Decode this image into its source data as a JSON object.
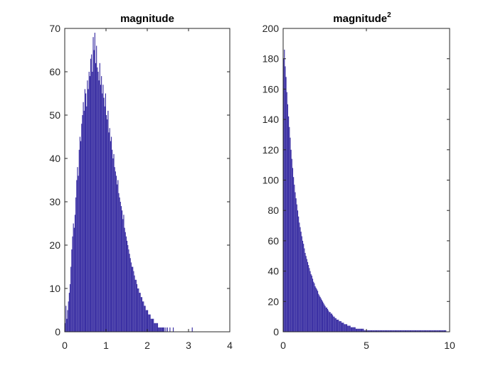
{
  "colors": {
    "bar": "#3a2fa3",
    "axis": "#262626",
    "background": "#ffffff"
  },
  "chart_data": [
    {
      "type": "bar",
      "subtype": "histogram",
      "title": "magnitude",
      "xlabel": "",
      "ylabel": "",
      "xlim": [
        0,
        4
      ],
      "ylim": [
        0,
        70
      ],
      "xticks": [
        "0",
        "1",
        "2",
        "3",
        "4"
      ],
      "yticks": [
        "0",
        "10",
        "20",
        "30",
        "40",
        "50",
        "60",
        "70"
      ],
      "bin_width": 0.02,
      "bin_start": 0,
      "values": [
        2,
        6,
        3,
        5,
        7,
        9,
        11,
        15,
        19,
        22,
        25,
        24,
        27,
        31,
        35,
        38,
        36,
        42,
        45,
        44,
        48,
        50,
        53,
        51,
        56,
        55,
        52,
        58,
        56,
        60,
        59,
        63,
        64,
        60,
        68,
        65,
        69,
        62,
        66,
        61,
        60,
        58,
        62,
        57,
        59,
        55,
        57,
        54,
        52,
        55,
        50,
        49,
        51,
        46,
        47,
        44,
        45,
        42,
        40,
        41,
        38,
        37,
        36,
        34,
        35,
        32,
        31,
        30,
        29,
        28,
        26,
        27,
        24,
        23,
        22,
        21,
        20,
        19,
        18,
        17,
        16,
        15,
        15,
        14,
        13,
        12,
        12,
        11,
        10,
        10,
        9,
        9,
        8,
        8,
        7,
        7,
        6,
        6,
        5,
        5,
        5,
        4,
        4,
        4,
        3,
        3,
        3,
        3,
        2,
        2,
        2,
        2,
        2,
        1,
        1,
        1,
        1,
        1,
        1,
        1,
        1,
        0,
        1,
        0,
        1,
        0,
        0,
        1,
        0,
        0,
        0,
        1,
        0,
        0,
        0,
        0,
        0,
        0,
        0,
        0,
        0,
        0,
        0,
        0,
        0,
        0,
        0,
        0,
        0,
        0,
        0,
        0,
        0,
        0,
        1,
        0,
        0,
        0,
        0,
        0,
        0,
        0,
        0,
        0,
        0,
        0,
        0,
        0,
        0,
        0,
        0,
        0,
        0,
        0,
        0,
        0,
        0,
        0,
        0,
        0,
        0,
        0,
        0,
        0,
        0,
        0,
        0,
        0,
        0,
        0,
        0,
        0,
        0,
        0,
        0,
        0,
        0,
        0,
        0,
        0
      ]
    },
    {
      "type": "bar",
      "subtype": "histogram",
      "title": "magnitude",
      "title_superscript": "2",
      "xlabel": "",
      "ylabel": "",
      "xlim": [
        0,
        10
      ],
      "ylim": [
        0,
        200
      ],
      "xticks": [
        "0",
        "5",
        "10"
      ],
      "yticks": [
        "0",
        "20",
        "40",
        "60",
        "80",
        "100",
        "120",
        "140",
        "160",
        "180",
        "200"
      ],
      "bin_width": 0.05,
      "bin_start": 0,
      "values": [
        180,
        186,
        175,
        168,
        158,
        150,
        142,
        135,
        128,
        120,
        114,
        108,
        102,
        97,
        92,
        88,
        84,
        80,
        76,
        72,
        69,
        66,
        63,
        60,
        58,
        55,
        52,
        50,
        48,
        46,
        44,
        42,
        40,
        38,
        37,
        35,
        33,
        32,
        30,
        29,
        28,
        27,
        25,
        24,
        23,
        22,
        21,
        20,
        19,
        18,
        17,
        16,
        16,
        15,
        14,
        13,
        13,
        12,
        12,
        11,
        10,
        10,
        9,
        9,
        8,
        8,
        8,
        7,
        7,
        7,
        6,
        6,
        6,
        5,
        5,
        5,
        5,
        4,
        4,
        4,
        4,
        3,
        3,
        3,
        3,
        3,
        3,
        2,
        2,
        2,
        2,
        2,
        2,
        2,
        2,
        2,
        2,
        1,
        1,
        1,
        1,
        1,
        1,
        1,
        1,
        1,
        1,
        1,
        1,
        1,
        1,
        1,
        1,
        1,
        1,
        1,
        1,
        1,
        1,
        1,
        1,
        1,
        1,
        1,
        1,
        1,
        1,
        1,
        1,
        1,
        1,
        1,
        1,
        1,
        1,
        1,
        1,
        1,
        1,
        1,
        1,
        1,
        1,
        1,
        1,
        1,
        1,
        1,
        1,
        1,
        1,
        1,
        1,
        1,
        1,
        1,
        1,
        1,
        1,
        1,
        1,
        1,
        1,
        1,
        1,
        1,
        1,
        1,
        1,
        1,
        1,
        1,
        1,
        1,
        1,
        1,
        1,
        1,
        1,
        1,
        1,
        1,
        1,
        1,
        1,
        1,
        1,
        1,
        1,
        1,
        1,
        1,
        1,
        1,
        1,
        1
      ]
    }
  ]
}
